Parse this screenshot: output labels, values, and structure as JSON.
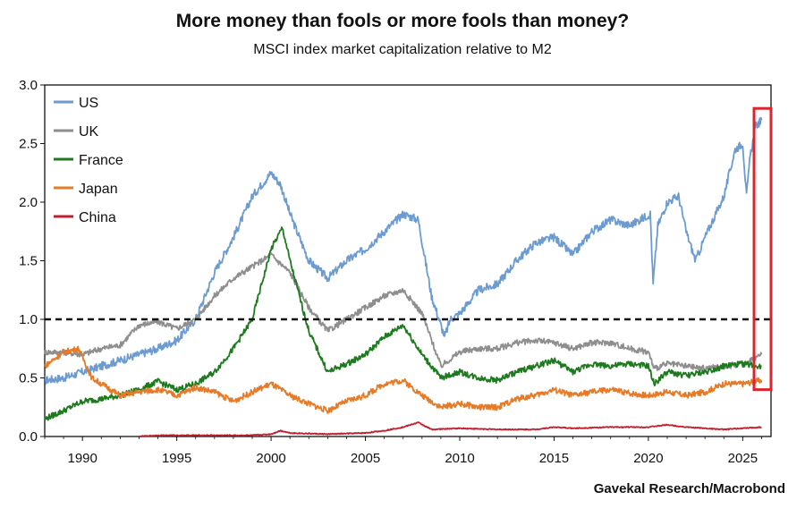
{
  "chart_data": {
    "type": "line",
    "title": "More money than fools or more fools than money?",
    "subtitle": "MSCI index market capitalization relative to M2",
    "source": "Gavekal Research/Macrobond",
    "xlim": [
      1988,
      2026.5
    ],
    "ylim": [
      0,
      3.0
    ],
    "x_ticks": [
      "1990",
      "1995",
      "2000",
      "2005",
      "2010",
      "2015",
      "2020",
      "2025"
    ],
    "y_ticks": [
      "0.0",
      "0.5",
      "1.0",
      "1.5",
      "2.0",
      "2.5",
      "3.0"
    ],
    "grid": false,
    "legend_position": "top-left",
    "reference_line": {
      "y": 1.0,
      "style": "dashed"
    },
    "highlight_box": {
      "x_range": [
        2025.6,
        2026.5
      ],
      "y_range": [
        0.4,
        2.8
      ],
      "color": "#d9262e"
    },
    "series": [
      {
        "name": "US",
        "color": "#6b9bd1",
        "points": [
          [
            1988,
            0.48
          ],
          [
            1989,
            0.5
          ],
          [
            1990,
            0.55
          ],
          [
            1991,
            0.6
          ],
          [
            1992,
            0.65
          ],
          [
            1993,
            0.7
          ],
          [
            1994,
            0.75
          ],
          [
            1995,
            0.82
          ],
          [
            1996,
            1.0
          ],
          [
            1997,
            1.4
          ],
          [
            1998,
            1.7
          ],
          [
            1999,
            2.05
          ],
          [
            2000,
            2.25
          ],
          [
            2000.5,
            2.15
          ],
          [
            2001,
            1.9
          ],
          [
            2002,
            1.5
          ],
          [
            2003,
            1.35
          ],
          [
            2004,
            1.5
          ],
          [
            2005,
            1.6
          ],
          [
            2006,
            1.75
          ],
          [
            2007,
            1.9
          ],
          [
            2007.8,
            1.85
          ],
          [
            2008.5,
            1.2
          ],
          [
            2009.2,
            0.85
          ],
          [
            2009.5,
            1.0
          ],
          [
            2010,
            1.05
          ],
          [
            2011,
            1.25
          ],
          [
            2012,
            1.3
          ],
          [
            2013,
            1.5
          ],
          [
            2014,
            1.65
          ],
          [
            2015,
            1.7
          ],
          [
            2016,
            1.55
          ],
          [
            2017,
            1.75
          ],
          [
            2018,
            1.85
          ],
          [
            2019,
            1.8
          ],
          [
            2020.1,
            1.9
          ],
          [
            2020.25,
            1.3
          ],
          [
            2020.5,
            1.8
          ],
          [
            2021,
            2.0
          ],
          [
            2021.6,
            2.05
          ],
          [
            2022,
            1.75
          ],
          [
            2022.5,
            1.5
          ],
          [
            2023,
            1.7
          ],
          [
            2024,
            2.05
          ],
          [
            2024.6,
            2.45
          ],
          [
            2025,
            2.5
          ],
          [
            2025.2,
            2.05
          ],
          [
            2025.4,
            2.4
          ],
          [
            2025.7,
            2.65
          ],
          [
            2026,
            2.7
          ]
        ]
      },
      {
        "name": "UK",
        "color": "#8e8e8e",
        "points": [
          [
            1988,
            0.72
          ],
          [
            1989,
            0.72
          ],
          [
            1990,
            0.7
          ],
          [
            1991,
            0.75
          ],
          [
            1992,
            0.78
          ],
          [
            1993,
            0.95
          ],
          [
            1994,
            0.98
          ],
          [
            1995,
            0.92
          ],
          [
            1996,
            1.0
          ],
          [
            1997,
            1.2
          ],
          [
            1998,
            1.35
          ],
          [
            1999,
            1.45
          ],
          [
            2000,
            1.55
          ],
          [
            2001,
            1.4
          ],
          [
            2002,
            1.1
          ],
          [
            2003,
            0.9
          ],
          [
            2004,
            1.0
          ],
          [
            2005,
            1.1
          ],
          [
            2006,
            1.2
          ],
          [
            2007,
            1.25
          ],
          [
            2008,
            1.05
          ],
          [
            2009,
            0.6
          ],
          [
            2010,
            0.72
          ],
          [
            2011,
            0.75
          ],
          [
            2012,
            0.75
          ],
          [
            2013,
            0.8
          ],
          [
            2014,
            0.82
          ],
          [
            2015,
            0.8
          ],
          [
            2016,
            0.75
          ],
          [
            2017,
            0.8
          ],
          [
            2018,
            0.8
          ],
          [
            2019,
            0.75
          ],
          [
            2020,
            0.72
          ],
          [
            2020.3,
            0.58
          ],
          [
            2021,
            0.62
          ],
          [
            2022,
            0.6
          ],
          [
            2023,
            0.58
          ],
          [
            2024,
            0.6
          ],
          [
            2025,
            0.62
          ],
          [
            2026,
            0.7
          ]
        ]
      },
      {
        "name": "France",
        "color": "#1e7a1e",
        "points": [
          [
            1988,
            0.15
          ],
          [
            1989,
            0.22
          ],
          [
            1990,
            0.3
          ],
          [
            1991,
            0.32
          ],
          [
            1992,
            0.35
          ],
          [
            1993,
            0.4
          ],
          [
            1994,
            0.47
          ],
          [
            1995,
            0.4
          ],
          [
            1996,
            0.45
          ],
          [
            1997,
            0.55
          ],
          [
            1998,
            0.75
          ],
          [
            1999,
            1.0
          ],
          [
            2000,
            1.6
          ],
          [
            2000.6,
            1.78
          ],
          [
            2001,
            1.5
          ],
          [
            2002,
            0.9
          ],
          [
            2003,
            0.55
          ],
          [
            2004,
            0.62
          ],
          [
            2005,
            0.7
          ],
          [
            2006,
            0.85
          ],
          [
            2007,
            0.95
          ],
          [
            2008,
            0.7
          ],
          [
            2009,
            0.5
          ],
          [
            2010,
            0.55
          ],
          [
            2011,
            0.5
          ],
          [
            2012,
            0.48
          ],
          [
            2013,
            0.55
          ],
          [
            2014,
            0.6
          ],
          [
            2015,
            0.65
          ],
          [
            2016,
            0.55
          ],
          [
            2017,
            0.62
          ],
          [
            2018,
            0.6
          ],
          [
            2019,
            0.62
          ],
          [
            2020,
            0.6
          ],
          [
            2020.3,
            0.45
          ],
          [
            2021,
            0.55
          ],
          [
            2022,
            0.52
          ],
          [
            2023,
            0.55
          ],
          [
            2024,
            0.6
          ],
          [
            2025,
            0.62
          ],
          [
            2026,
            0.6
          ]
        ]
      },
      {
        "name": "Japan",
        "color": "#e77a26",
        "points": [
          [
            1988,
            0.6
          ],
          [
            1989,
            0.72
          ],
          [
            1989.8,
            0.75
          ],
          [
            1990.5,
            0.5
          ],
          [
            1991,
            0.45
          ],
          [
            1992,
            0.35
          ],
          [
            1993,
            0.38
          ],
          [
            1994,
            0.4
          ],
          [
            1995,
            0.35
          ],
          [
            1996,
            0.42
          ],
          [
            1997,
            0.38
          ],
          [
            1998,
            0.3
          ],
          [
            1999,
            0.38
          ],
          [
            2000,
            0.45
          ],
          [
            2001,
            0.35
          ],
          [
            2002,
            0.28
          ],
          [
            2003,
            0.22
          ],
          [
            2004,
            0.3
          ],
          [
            2005,
            0.35
          ],
          [
            2006,
            0.45
          ],
          [
            2007,
            0.48
          ],
          [
            2008,
            0.35
          ],
          [
            2009,
            0.25
          ],
          [
            2010,
            0.28
          ],
          [
            2011,
            0.25
          ],
          [
            2012,
            0.25
          ],
          [
            2013,
            0.32
          ],
          [
            2014,
            0.35
          ],
          [
            2015,
            0.4
          ],
          [
            2016,
            0.35
          ],
          [
            2017,
            0.38
          ],
          [
            2018,
            0.4
          ],
          [
            2019,
            0.37
          ],
          [
            2020,
            0.35
          ],
          [
            2021,
            0.38
          ],
          [
            2022,
            0.35
          ],
          [
            2023,
            0.38
          ],
          [
            2024,
            0.45
          ],
          [
            2025,
            0.45
          ],
          [
            2026,
            0.48
          ]
        ]
      },
      {
        "name": "China",
        "color": "#c0202d",
        "points": [
          [
            1993,
            0.0
          ],
          [
            1994,
            0.01
          ],
          [
            1995,
            0.01
          ],
          [
            1996,
            0.01
          ],
          [
            1997,
            0.01
          ],
          [
            1998,
            0.01
          ],
          [
            1999,
            0.01
          ],
          [
            2000,
            0.02
          ],
          [
            2000.5,
            0.05
          ],
          [
            2001,
            0.03
          ],
          [
            2003,
            0.02
          ],
          [
            2005,
            0.03
          ],
          [
            2006,
            0.05
          ],
          [
            2007,
            0.08
          ],
          [
            2007.8,
            0.12
          ],
          [
            2008.5,
            0.06
          ],
          [
            2010,
            0.07
          ],
          [
            2012,
            0.06
          ],
          [
            2014,
            0.06
          ],
          [
            2015,
            0.08
          ],
          [
            2016,
            0.07
          ],
          [
            2018,
            0.08
          ],
          [
            2020,
            0.08
          ],
          [
            2021,
            0.1
          ],
          [
            2022,
            0.08
          ],
          [
            2023,
            0.07
          ],
          [
            2024,
            0.06
          ],
          [
            2025,
            0.07
          ],
          [
            2026,
            0.08
          ]
        ]
      }
    ]
  }
}
